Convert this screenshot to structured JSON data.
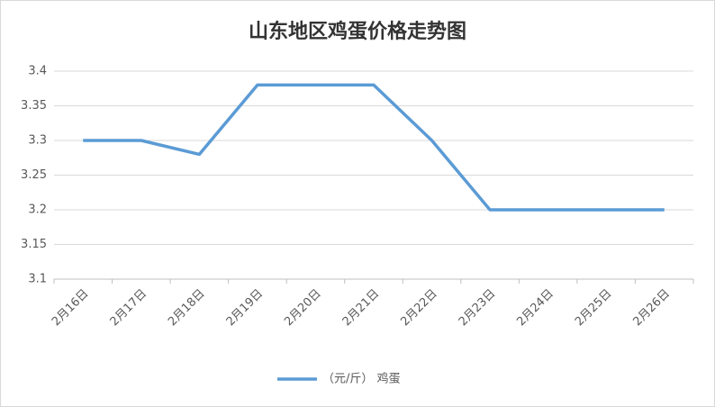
{
  "chart_data": {
    "type": "line",
    "title": "山东地区鸡蛋价格走势图",
    "categories": [
      "2月16日",
      "2月17日",
      "2月18日",
      "2月19日",
      "2月20日",
      "2月21日",
      "2月22日",
      "2月23日",
      "2月24日",
      "2月25日",
      "2月26日"
    ],
    "series": [
      {
        "name": "（元/斤） 鸡蛋",
        "color": "#5b9bd5",
        "values": [
          3.3,
          3.3,
          3.28,
          3.38,
          3.38,
          3.38,
          3.3,
          3.2,
          3.2,
          3.2,
          3.2
        ]
      }
    ],
    "ylim": [
      3.1,
      3.4
    ],
    "yticks": [
      3.1,
      3.15,
      3.2,
      3.25,
      3.3,
      3.35,
      3.4
    ],
    "grid": true,
    "legend": "bottom"
  }
}
